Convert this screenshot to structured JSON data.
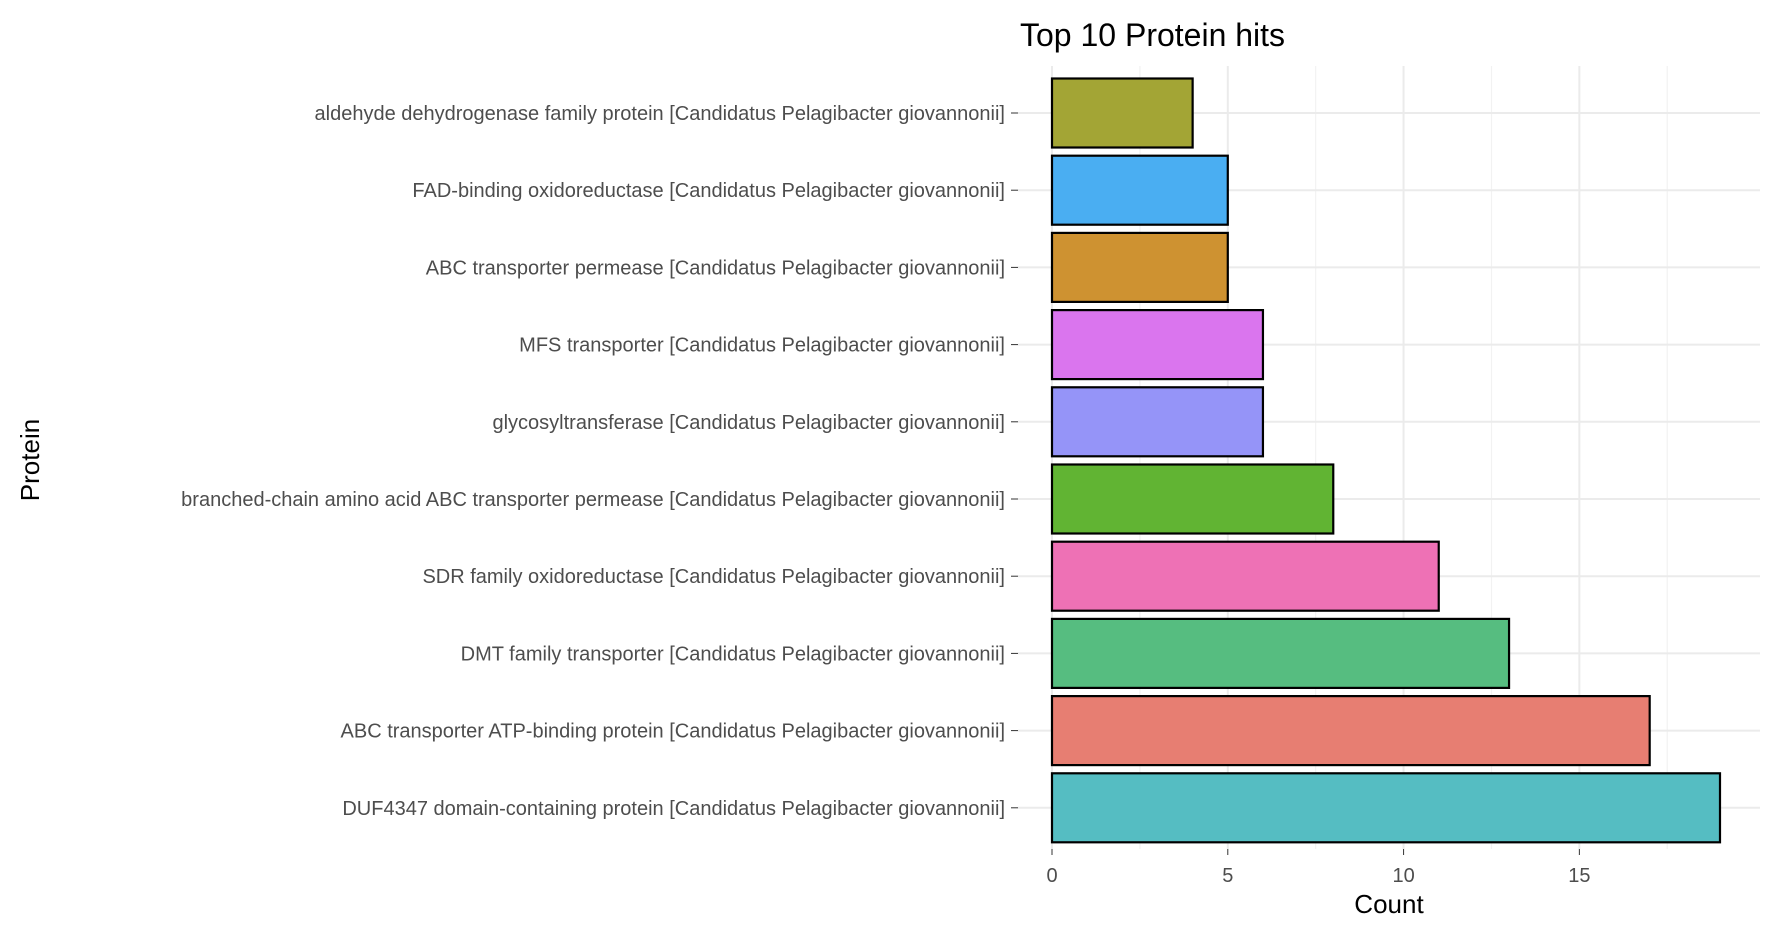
{
  "chart_data": {
    "type": "bar",
    "orientation": "horizontal",
    "title": "Top 10 Protein hits",
    "xlabel": "Count",
    "ylabel": "Protein",
    "xlim": [
      0,
      19.5
    ],
    "xticks": [
      0,
      5,
      10,
      15
    ],
    "grid": true,
    "legend": "none",
    "categories": [
      "aldehyde dehydrogenase family protein [Candidatus Pelagibacter giovannonii]",
      "FAD-binding oxidoreductase [Candidatus Pelagibacter giovannonii]",
      "ABC transporter permease [Candidatus Pelagibacter giovannonii]",
      "MFS transporter [Candidatus Pelagibacter giovannonii]",
      "glycosyltransferase [Candidatus Pelagibacter giovannonii]",
      "branched-chain amino acid ABC transporter permease [Candidatus Pelagibacter giovannonii]",
      "SDR family oxidoreductase [Candidatus Pelagibacter giovannonii]",
      "DMT family transporter [Candidatus Pelagibacter giovannonii]",
      "ABC transporter ATP-binding protein [Candidatus Pelagibacter giovannonii]",
      "DUF4347 domain-containing protein [Candidatus Pelagibacter giovannonii]"
    ],
    "values": [
      4,
      5,
      5,
      6,
      6,
      8,
      11,
      13,
      17,
      19
    ],
    "colors": [
      "#A3A535",
      "#4AAEF2",
      "#CE9231",
      "#DA75EE",
      "#9594F8",
      "#61B433",
      "#EE71B5",
      "#56BD80",
      "#E77E72",
      "#55BDC2"
    ]
  }
}
